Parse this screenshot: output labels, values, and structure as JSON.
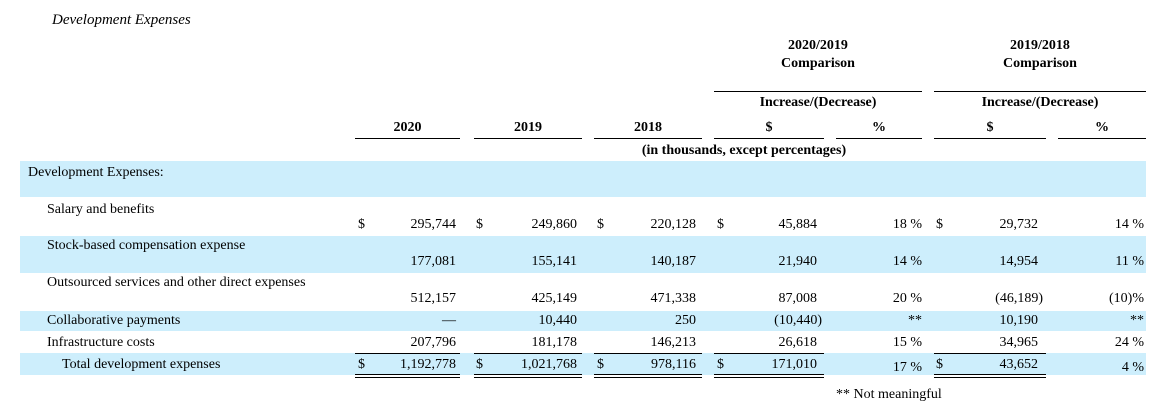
{
  "title": "Development Expenses",
  "header": {
    "comp1_line1": "2020/2019",
    "comp1_line2": "Comparison",
    "comp2_line1": "2019/2018",
    "comp2_line2": "Comparison",
    "incdec1": "Increase/(Decrease)",
    "incdec2": "Increase/(Decrease)",
    "y2020": "2020",
    "y2019": "2019",
    "y2018": "2018",
    "dollar1": "$",
    "pct1": "%",
    "dollar2": "$",
    "pct2": "%",
    "units": "(in thousands, except percentages)"
  },
  "section_label": "Development Expenses:",
  "currency_symbol": "$",
  "rows": [
    {
      "label": "Salary and benefits",
      "v2020": "295,744",
      "v2019": "249,860",
      "v2018": "220,128",
      "d1": "45,884",
      "p1": "18 %",
      "d2": "29,732",
      "p2": "14 %"
    },
    {
      "label": "Stock-based compensation expense",
      "v2020": "177,081",
      "v2019": "155,141",
      "v2018": "140,187",
      "d1": "21,940",
      "p1": "14 %",
      "d2": "14,954",
      "p2": "11 %"
    },
    {
      "label": "Outsourced services and other direct expenses",
      "v2020": "512,157",
      "v2019": "425,149",
      "v2018": "471,338",
      "d1": "87,008",
      "p1": "20 %",
      "d2": "(46,189)",
      "p2": "(10)%"
    },
    {
      "label": "Collaborative payments",
      "v2020": "—",
      "v2019": "10,440",
      "v2018": "250",
      "d1": "(10,440)",
      "p1": "**",
      "d2": "10,190",
      "p2": "**"
    },
    {
      "label": "Infrastructure costs",
      "v2020": "207,796",
      "v2019": "181,178",
      "v2018": "146,213",
      "d1": "26,618",
      "p1": "15 %",
      "d2": "34,965",
      "p2": "24 %"
    },
    {
      "label": "Total development expenses",
      "v2020": "1,192,778",
      "v2019": "1,021,768",
      "v2018": "978,116",
      "d1": "171,010",
      "p1": "17 %",
      "d2": "43,652",
      "p2": "4 %"
    }
  ],
  "footnote": "** Not meaningful",
  "colors": {
    "band": "#cdeefc",
    "text": "#000000"
  }
}
